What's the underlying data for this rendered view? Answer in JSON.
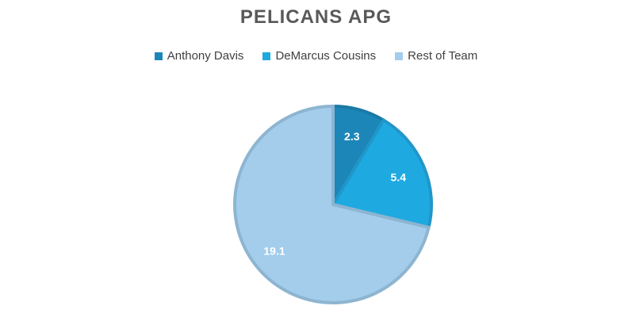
{
  "chart_data": {
    "type": "pie",
    "title": "PELICANS APG",
    "legend_position": "top",
    "series": [
      {
        "values": [
          2.3,
          5.4,
          19.1
        ],
        "categories": [
          "Anthony Davis",
          "DeMarcus Cousins",
          "Rest of Team"
        ]
      }
    ],
    "slices": [
      {
        "label": "Anthony Davis",
        "value": 2.3,
        "value_label": "2.3",
        "color": "#1C86B8",
        "edge_color": "#1A7AA6"
      },
      {
        "label": "DeMarcus Cousins",
        "value": 5.4,
        "value_label": "5.4",
        "color": "#1EAAE1",
        "edge_color": "#2196C9"
      },
      {
        "label": "Rest of Team",
        "value": 19.1,
        "value_label": "19.1",
        "color": "#A3CDEB",
        "edge_color": "#8DB5D1"
      }
    ]
  }
}
